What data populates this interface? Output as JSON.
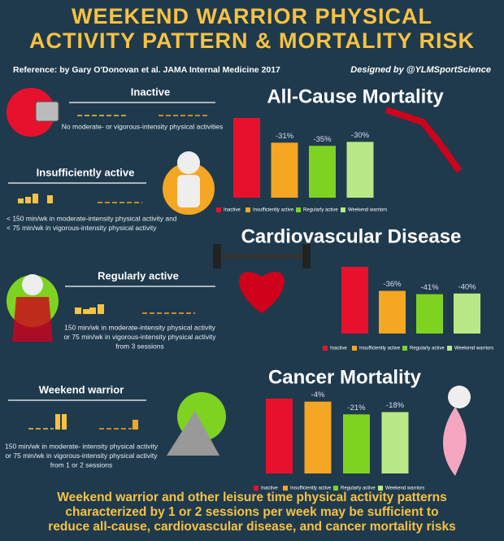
{
  "header": {
    "title": [
      "WEEKEND WARRIOR PHYSICAL",
      "ACTIVITY PATTERN & MORTALITY RISK"
    ],
    "reference": "Reference: by Gary O'Donovan et al. JAMA Internal Medicine 2017",
    "credit": "Designed by @YLMSportScience"
  },
  "profiles": [
    {
      "title": "Inactive",
      "description": [
        "No moderate- or vigorous-intensity physical activities"
      ]
    },
    {
      "title": "Insufficiently active",
      "description": [
        "< 150 min/wk in moderate-intensity physical activity and",
        "< 75 min/wk in vigorous-intensity physical activity"
      ]
    },
    {
      "title": "Regularly active",
      "description": [
        "150 min/wk in moderate-intensity physical activity",
        "or   75 min/wk in vigorous-intensity physical activity",
        "from   3 sessions"
      ]
    },
    {
      "title": "Weekend warrior",
      "description": [
        "150 min/wk in moderate- intensity physical activity",
        "or   75 min/wk in vigorous-intensity physical activity",
        "from 1 or 2 sessions"
      ]
    }
  ],
  "chart_data": [
    {
      "type": "bar",
      "title": "All-Cause Mortality",
      "categories": [
        "Inactive",
        "Insufficiently active",
        "Regularly active",
        "Weekend warriors"
      ],
      "values": [
        0,
        -31,
        -35,
        -30
      ],
      "value_labels": [
        null,
        "-31%",
        "-35%",
        "-30%"
      ],
      "colors": [
        "#e8112d",
        "#f5a623",
        "#7ed321",
        "#b8e986"
      ],
      "ylim": [
        -100,
        0
      ]
    },
    {
      "type": "bar",
      "title": "Cardiovascular Disease",
      "categories": [
        "Inactive",
        "Insufficiently active",
        "Regularly active",
        "Weekend warriors"
      ],
      "values": [
        0,
        -36,
        -41,
        -40
      ],
      "value_labels": [
        null,
        "-36%",
        "-41%",
        "-40%"
      ],
      "colors": [
        "#e8112d",
        "#f5a623",
        "#7ed321",
        "#b8e986"
      ],
      "ylim": [
        -100,
        0
      ]
    },
    {
      "type": "bar",
      "title": "Cancer Mortality",
      "categories": [
        "Inactive",
        "Insufficiently active",
        "Regularly active",
        "Weekend warriors"
      ],
      "values": [
        0,
        -4,
        -21,
        -18
      ],
      "value_labels": [
        null,
        "-4%",
        "-21%",
        "-18%"
      ],
      "colors": [
        "#e8112d",
        "#f5a623",
        "#7ed321",
        "#b8e986"
      ],
      "ylim": [
        -100,
        0
      ]
    }
  ],
  "footer": [
    "Weekend warrior and other leisure time physical activity patterns",
    "characterized by 1 or 2 sessions per week may be sufficient to",
    "reduce all-cause, cardiovascular disease, and cancer mortality risks"
  ]
}
